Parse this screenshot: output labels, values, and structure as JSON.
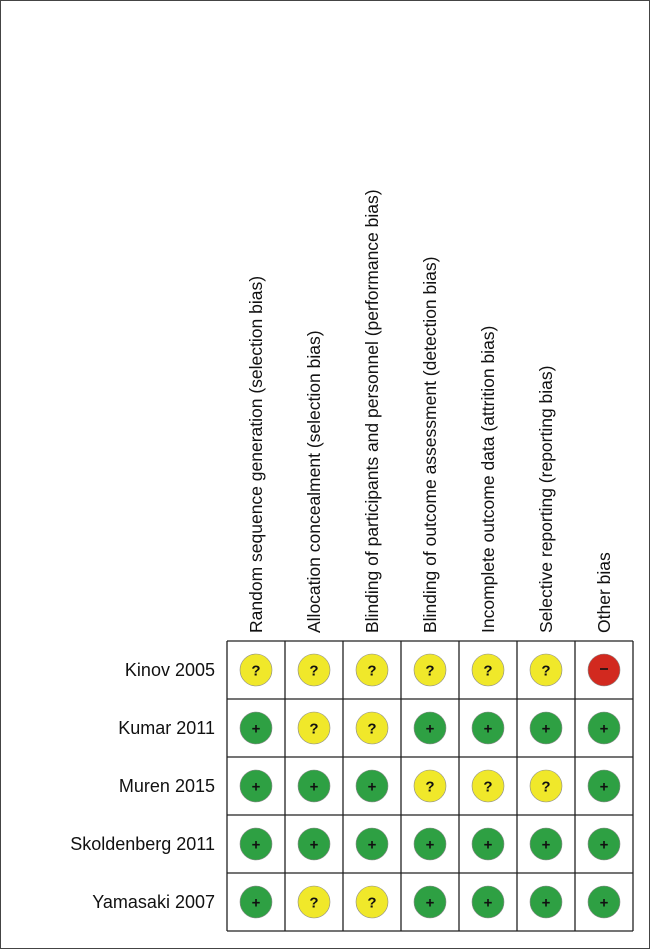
{
  "chart_data": {
    "type": "table",
    "domains": [
      "Random sequence generation (selection bias)",
      "Allocation concealment (selection bias)",
      "Blinding of participants and personnel (performance bias)",
      "Blinding of outcome assessment (detection bias)",
      "Incomplete outcome data (attrition bias)",
      "Selective reporting (reporting bias)",
      "Other bias"
    ],
    "studies": [
      {
        "name": "Kinov 2005",
        "judgements": [
          "unclear",
          "unclear",
          "unclear",
          "unclear",
          "unclear",
          "unclear",
          "high"
        ]
      },
      {
        "name": "Kumar 2011",
        "judgements": [
          "low",
          "unclear",
          "unclear",
          "low",
          "low",
          "low",
          "low"
        ]
      },
      {
        "name": "Muren 2015",
        "judgements": [
          "low",
          "low",
          "low",
          "unclear",
          "unclear",
          "unclear",
          "low"
        ]
      },
      {
        "name": "Skoldenberg 2011",
        "judgements": [
          "low",
          "low",
          "low",
          "low",
          "low",
          "low",
          "low"
        ]
      },
      {
        "name": "Yamasaki 2007",
        "judgements": [
          "low",
          "unclear",
          "unclear",
          "low",
          "low",
          "low",
          "low"
        ]
      }
    ],
    "symbols": {
      "low": {
        "glyph": "+",
        "color": "#2ea043"
      },
      "unclear": {
        "glyph": "?",
        "color": "#f0e82a"
      },
      "high": {
        "glyph": "–",
        "color": "#d2291f"
      }
    }
  }
}
